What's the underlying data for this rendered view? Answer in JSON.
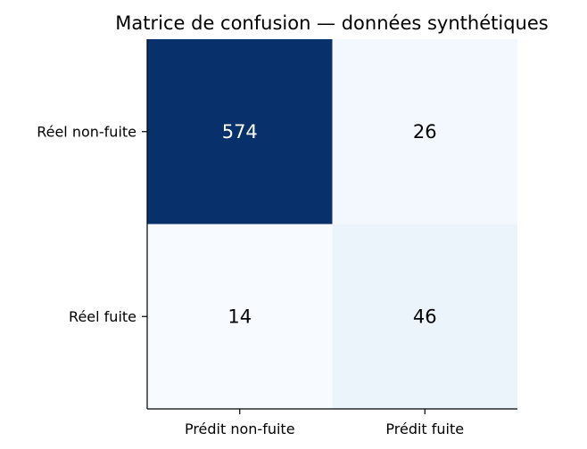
{
  "chart_data": {
    "type": "heatmap",
    "title": "Matrice de confusion — données synthétiques",
    "xlabel": "",
    "ylabel": "",
    "x_categories": [
      "Prédit non-fuite",
      "Prédit fuite"
    ],
    "y_categories": [
      "Réel non-fuite",
      "Réel fuite"
    ],
    "values": [
      [
        574,
        26
      ],
      [
        14,
        46
      ]
    ],
    "colormap": "Blues",
    "colors": {
      "high": "#08306b",
      "low": "#f7fbff",
      "text_on_dark": "#ffffff",
      "text_on_light": "#000000"
    },
    "grid": false,
    "colorbar": false
  }
}
